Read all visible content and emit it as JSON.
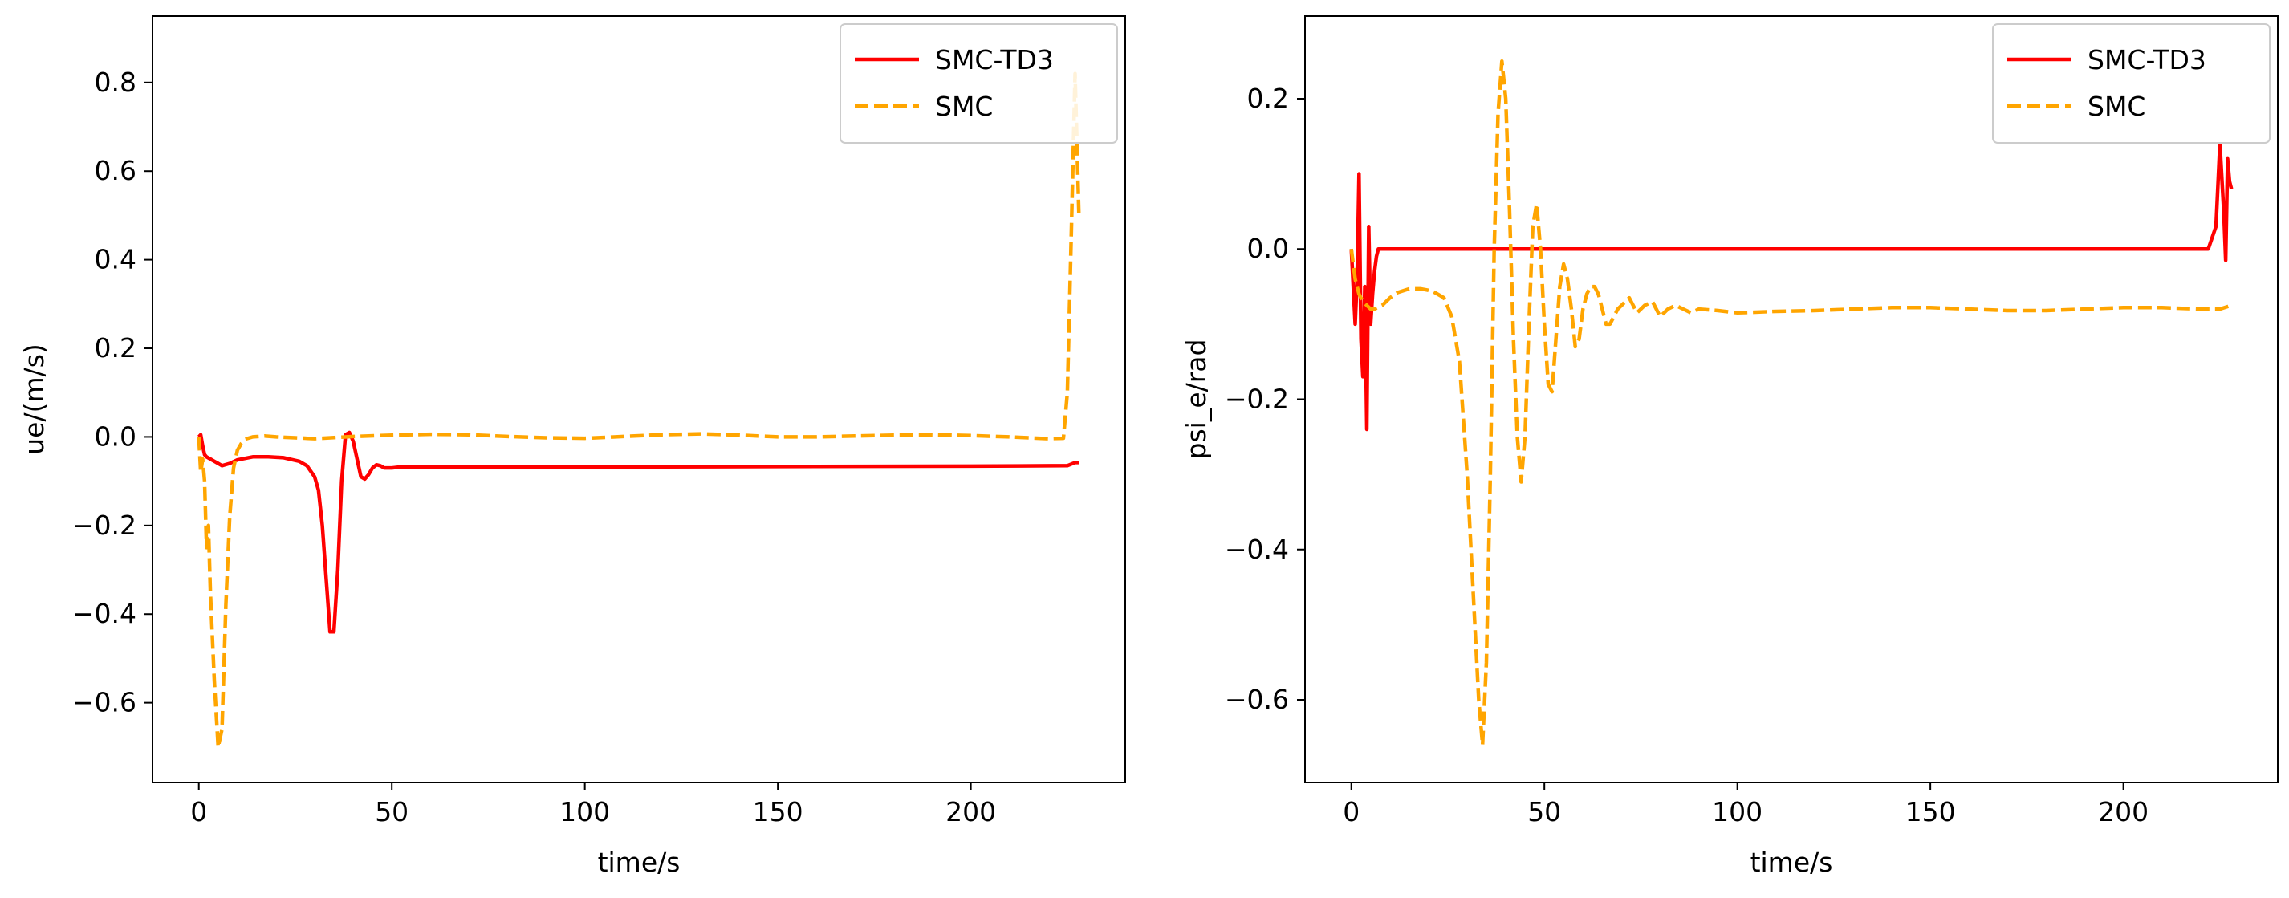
{
  "chart_data": [
    {
      "type": "line",
      "xlabel": "time/s",
      "ylabel": "ue/(m/s)",
      "xlim": [
        -12,
        240
      ],
      "ylim": [
        -0.78,
        0.95
      ],
      "xticks": [
        0,
        50,
        100,
        150,
        200
      ],
      "yticks": [
        -0.6,
        -0.4,
        -0.2,
        0.0,
        0.2,
        0.4,
        0.6,
        0.8
      ],
      "xtick_labels": [
        "0",
        "50",
        "100",
        "150",
        "200"
      ],
      "ytick_labels": [
        "−0.6",
        "−0.4",
        "−0.2",
        "0.0",
        "0.2",
        "0.4",
        "0.6",
        "0.8"
      ],
      "legend": {
        "position": "top-right",
        "entries": [
          "SMC-TD3",
          "SMC"
        ]
      },
      "series": [
        {
          "name": "SMC-TD3",
          "color": "#ff0000",
          "style": "solid",
          "x": [
            0,
            0.5,
            1,
            1.5,
            2,
            3,
            4,
            5,
            6,
            8,
            10,
            14,
            18,
            22,
            26,
            28,
            30,
            31,
            32,
            33,
            34,
            35,
            36,
            37,
            38,
            39,
            40,
            42,
            43,
            44,
            45,
            46,
            47,
            48,
            50,
            52,
            55,
            60,
            100,
            150,
            200,
            225,
            227,
            228
          ],
          "y": [
            0.0,
            0.005,
            -0.02,
            -0.04,
            -0.045,
            -0.05,
            -0.055,
            -0.06,
            -0.065,
            -0.06,
            -0.052,
            -0.045,
            -0.045,
            -0.047,
            -0.055,
            -0.065,
            -0.09,
            -0.12,
            -0.2,
            -0.32,
            -0.44,
            -0.44,
            -0.3,
            -0.1,
            0.005,
            0.01,
            -0.01,
            -0.09,
            -0.095,
            -0.085,
            -0.07,
            -0.063,
            -0.065,
            -0.07,
            -0.07,
            -0.068,
            -0.068,
            -0.068,
            -0.068,
            -0.067,
            -0.066,
            -0.065,
            -0.058,
            -0.058
          ]
        },
        {
          "name": "SMC",
          "color": "#ffa500",
          "style": "dashed",
          "x": [
            0,
            0.5,
            1,
            1.5,
            2,
            2.5,
            3,
            4,
            5,
            6,
            7,
            8,
            9,
            10,
            11,
            12,
            14,
            17,
            20,
            25,
            30,
            40,
            50,
            60,
            70,
            80,
            90,
            100,
            110,
            120,
            130,
            140,
            150,
            160,
            170,
            180,
            190,
            200,
            210,
            220,
            224,
            225,
            226,
            227,
            228
          ],
          "y": [
            0.0,
            -0.08,
            -0.05,
            -0.1,
            -0.25,
            -0.2,
            -0.35,
            -0.55,
            -0.7,
            -0.66,
            -0.38,
            -0.18,
            -0.07,
            -0.03,
            -0.015,
            -0.005,
            0.0,
            0.002,
            0.0,
            -0.002,
            -0.004,
            0.001,
            0.004,
            0.006,
            0.005,
            0.001,
            -0.002,
            -0.003,
            0.001,
            0.005,
            0.007,
            0.004,
            0.0,
            0.0,
            0.002,
            0.004,
            0.005,
            0.003,
            0.0,
            -0.004,
            -0.003,
            0.1,
            0.45,
            0.82,
            0.5
          ]
        }
      ]
    },
    {
      "type": "line",
      "xlabel": "time/s",
      "ylabel": "psi_e/rad",
      "xlim": [
        -12,
        240
      ],
      "ylim": [
        -0.71,
        0.31
      ],
      "xticks": [
        0,
        50,
        100,
        150,
        200
      ],
      "yticks": [
        -0.6,
        -0.4,
        -0.2,
        0.0,
        0.2
      ],
      "xtick_labels": [
        "0",
        "50",
        "100",
        "150",
        "200"
      ],
      "ytick_labels": [
        "−0.6",
        "−0.4",
        "−0.2",
        "0.0",
        "0.2"
      ],
      "legend": {
        "position": "top-right",
        "entries": [
          "SMC-TD3",
          "SMC"
        ]
      },
      "series": [
        {
          "name": "SMC-TD3",
          "color": "#ff0000",
          "style": "solid",
          "x": [
            0,
            0.5,
            1,
            1.5,
            2,
            2.5,
            3,
            3.5,
            4,
            4.5,
            5,
            5.5,
            6,
            6.5,
            7,
            8,
            10,
            20,
            30,
            40,
            60,
            100,
            150,
            200,
            222,
            224,
            225,
            226,
            226.5,
            227,
            227.5,
            228
          ],
          "y": [
            0.0,
            -0.05,
            -0.1,
            -0.04,
            0.1,
            -0.12,
            -0.17,
            -0.05,
            -0.24,
            0.03,
            -0.1,
            -0.06,
            -0.03,
            -0.01,
            0.0,
            0.0,
            0.0,
            0.0,
            0.0,
            0.0,
            0.0,
            0.0,
            0.0,
            0.0,
            0.0,
            0.03,
            0.14,
            0.05,
            -0.015,
            0.12,
            0.09,
            0.08
          ]
        },
        {
          "name": "SMC",
          "color": "#ffa500",
          "style": "dashed",
          "x": [
            0,
            1,
            2,
            3,
            4,
            5,
            6,
            8,
            10,
            12,
            15,
            18,
            21,
            24,
            26,
            28,
            30,
            32,
            33,
            34,
            35,
            36,
            37,
            38,
            39,
            40,
            41,
            42,
            43,
            44,
            45,
            46,
            47,
            48,
            49,
            50,
            51,
            52,
            53,
            54,
            55,
            56,
            57,
            58,
            59,
            60,
            61,
            62,
            63,
            64,
            65,
            66,
            67,
            68,
            69,
            70,
            72,
            74,
            76,
            78,
            80,
            82,
            84,
            86,
            88,
            90,
            95,
            100,
            110,
            120,
            130,
            140,
            150,
            160,
            170,
            180,
            190,
            200,
            210,
            220,
            225,
            228
          ],
          "y": [
            0.0,
            -0.04,
            -0.06,
            -0.07,
            -0.075,
            -0.08,
            -0.08,
            -0.075,
            -0.065,
            -0.058,
            -0.053,
            -0.053,
            -0.056,
            -0.065,
            -0.09,
            -0.15,
            -0.3,
            -0.5,
            -0.6,
            -0.66,
            -0.55,
            -0.3,
            0.0,
            0.18,
            0.25,
            0.2,
            0.05,
            -0.12,
            -0.25,
            -0.31,
            -0.25,
            -0.1,
            0.03,
            0.06,
            0.0,
            -0.1,
            -0.18,
            -0.19,
            -0.12,
            -0.05,
            -0.02,
            -0.04,
            -0.08,
            -0.13,
            -0.12,
            -0.08,
            -0.06,
            -0.05,
            -0.05,
            -0.06,
            -0.08,
            -0.1,
            -0.1,
            -0.09,
            -0.08,
            -0.075,
            -0.065,
            -0.085,
            -0.075,
            -0.07,
            -0.09,
            -0.08,
            -0.075,
            -0.08,
            -0.085,
            -0.08,
            -0.082,
            -0.085,
            -0.083,
            -0.082,
            -0.08,
            -0.078,
            -0.078,
            -0.08,
            -0.082,
            -0.082,
            -0.08,
            -0.078,
            -0.078,
            -0.08,
            -0.08,
            -0.075
          ]
        }
      ]
    }
  ]
}
